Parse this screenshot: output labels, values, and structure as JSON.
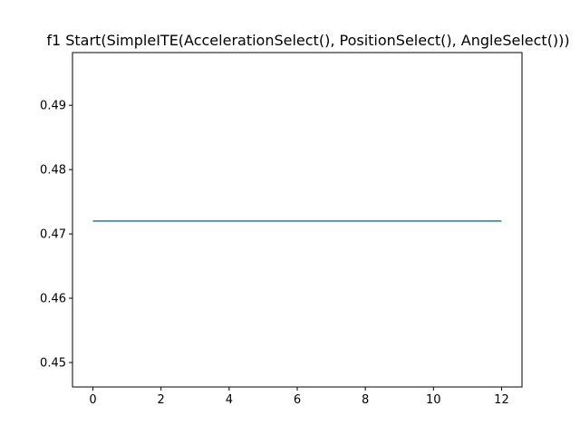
{
  "chart_data": {
    "type": "line",
    "title": "f1 Start(SimpleITE(AccelerationSelect(), PositionSelect(), AngleSelect()))",
    "xlabel": "",
    "ylabel": "",
    "xlim": [
      -0.6,
      12.6
    ],
    "ylim": [
      0.4462,
      0.4982
    ],
    "xticks": [
      0,
      2,
      4,
      6,
      8,
      10,
      12
    ],
    "xtick_labels": [
      "0",
      "2",
      "4",
      "6",
      "8",
      "10",
      "12"
    ],
    "yticks": [
      0.45,
      0.46,
      0.47,
      0.48,
      0.49
    ],
    "ytick_labels": [
      "0.45",
      "0.46",
      "0.47",
      "0.48",
      "0.49"
    ],
    "grid": false,
    "series": [
      {
        "color": "#1f77b4",
        "x": [
          0,
          1,
          2,
          3,
          4,
          5,
          6,
          7,
          8,
          9,
          10,
          11,
          12
        ],
        "y": [
          0.472,
          0.472,
          0.472,
          0.472,
          0.472,
          0.472,
          0.472,
          0.472,
          0.472,
          0.472,
          0.472,
          0.472,
          0.472
        ]
      }
    ]
  }
}
